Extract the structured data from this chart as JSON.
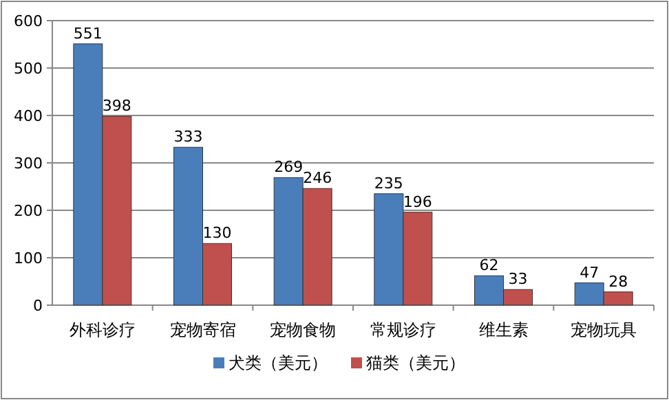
{
  "chart_data": {
    "type": "bar",
    "categories": [
      "外科诊疗",
      "宠物寄宿",
      "宠物食物",
      "常规诊疗",
      "维生素",
      "宠物玩具"
    ],
    "series": [
      {
        "name": "犬类（美元）",
        "color": "#4a7ebb",
        "values": [
          551,
          333,
          269,
          235,
          62,
          47
        ]
      },
      {
        "name": "猫类（美元）",
        "color": "#c0504d",
        "values": [
          398,
          130,
          246,
          196,
          33,
          28
        ]
      }
    ],
    "ylim": [
      0,
      600
    ],
    "yticks": [
      0,
      100,
      200,
      300,
      400,
      500,
      600
    ],
    "grid": "y",
    "legend": "bottom",
    "data_labels": true
  }
}
